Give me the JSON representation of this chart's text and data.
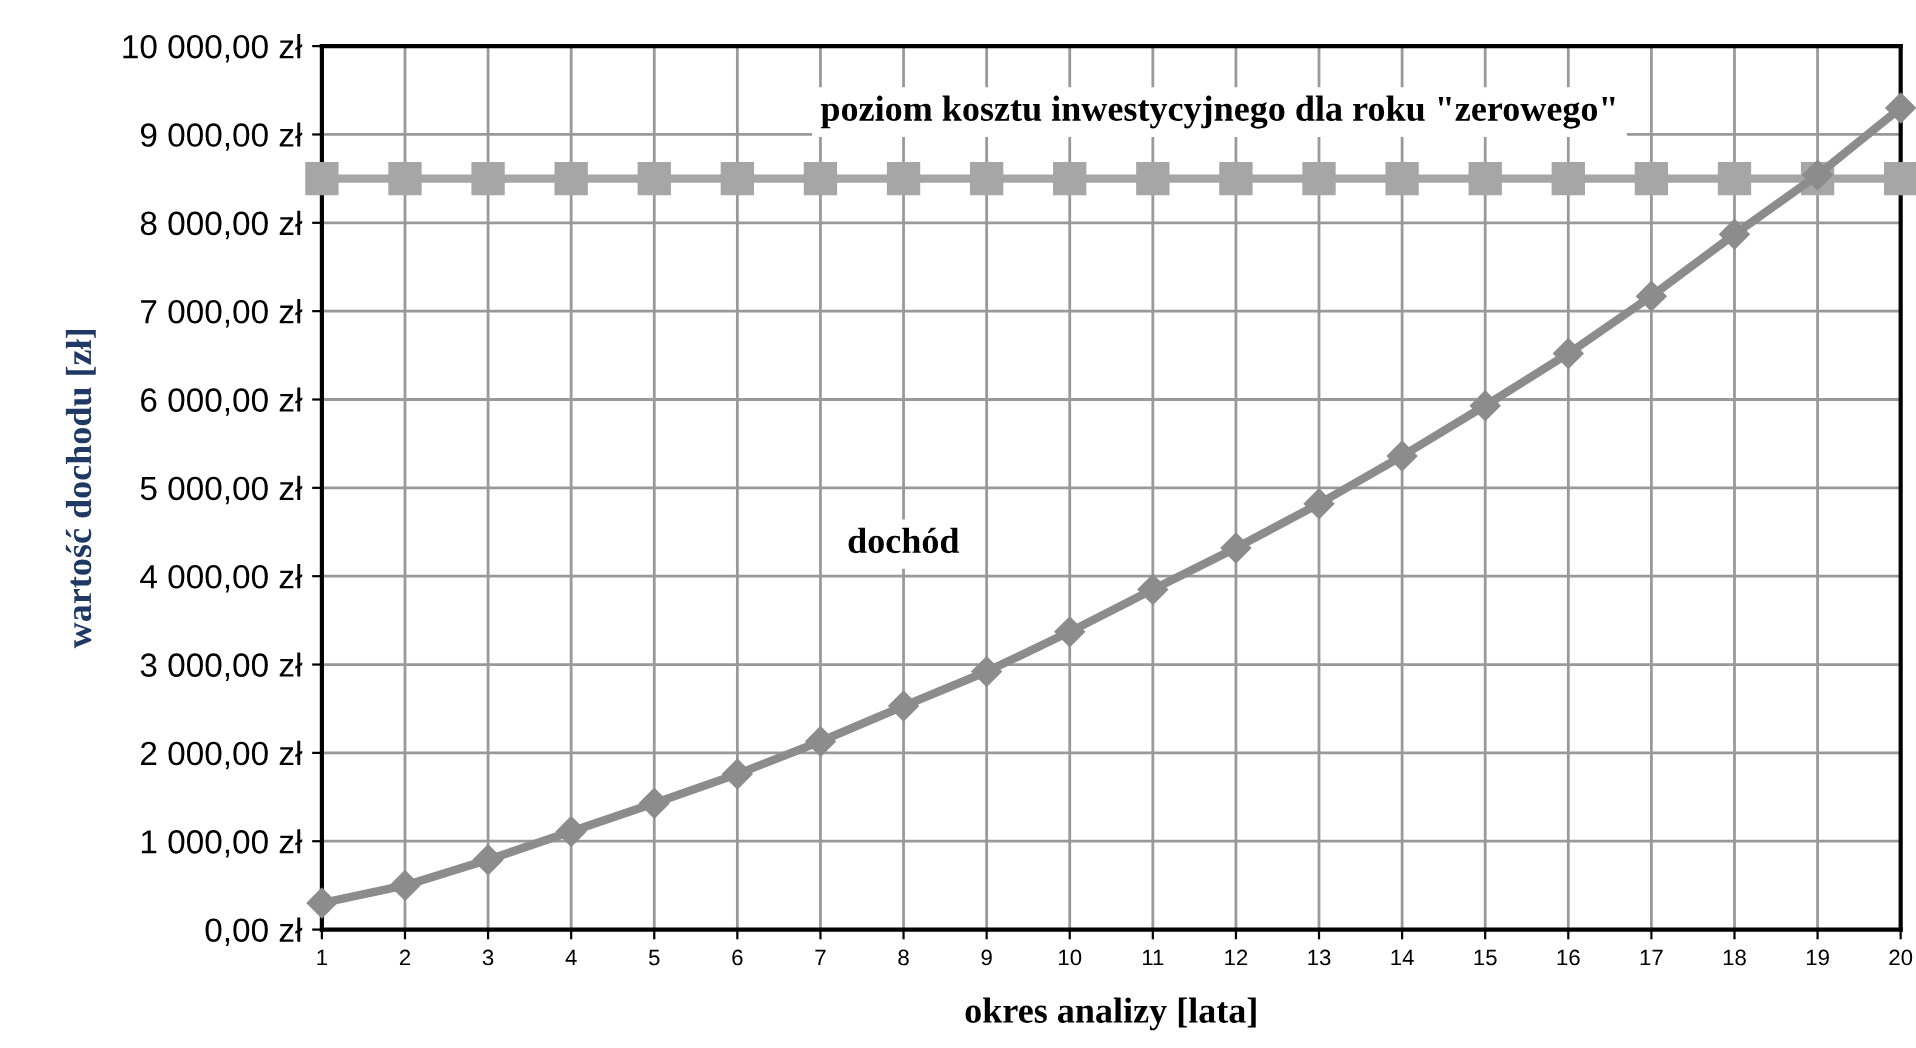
{
  "chart_data": {
    "type": "line",
    "xlabel": "okres analizy [lata]",
    "ylabel": "wartość dochodu [zł]",
    "x": [
      1,
      2,
      3,
      4,
      5,
      6,
      7,
      8,
      9,
      10,
      11,
      12,
      13,
      14,
      15,
      16,
      17,
      18,
      19,
      20
    ],
    "series": [
      {
        "name": "poziom kosztu inwestycyjnego dla roku \"zerowego\"",
        "color": "#a6a6a6",
        "marker": "square",
        "values": [
          8500,
          8500,
          8500,
          8500,
          8500,
          8500,
          8500,
          8500,
          8500,
          8500,
          8500,
          8500,
          8500,
          8500,
          8500,
          8500,
          8500,
          8500,
          8500,
          8500
        ]
      },
      {
        "name": "dochód",
        "color": "#8c8c8c",
        "marker": "diamond",
        "values": [
          300,
          500,
          790,
          1110,
          1430,
          1760,
          2130,
          2530,
          2920,
          3370,
          3850,
          4320,
          4820,
          5360,
          5930,
          6520,
          7170,
          7870,
          8540,
          9300
        ]
      }
    ],
    "xlim": [
      1,
      20
    ],
    "xticks": [
      1,
      2,
      3,
      4,
      5,
      6,
      7,
      8,
      9,
      10,
      11,
      12,
      13,
      14,
      15,
      16,
      17,
      18,
      19,
      20
    ],
    "ylim": [
      0,
      10000
    ],
    "yticks": [
      {
        "value": 0,
        "label": "0,00 zł"
      },
      {
        "value": 1000,
        "label": "1 000,00 zł"
      },
      {
        "value": 2000,
        "label": "2 000,00 zł"
      },
      {
        "value": 3000,
        "label": "3 000,00 zł"
      },
      {
        "value": 4000,
        "label": "4 000,00 zł"
      },
      {
        "value": 5000,
        "label": "5 000,00 zł"
      },
      {
        "value": 6000,
        "label": "6 000,00 zł"
      },
      {
        "value": 7000,
        "label": "7 000,00 zł"
      },
      {
        "value": 8000,
        "label": "8 000,00 zł"
      },
      {
        "value": 9000,
        "label": "9 000,00 zł"
      },
      {
        "value": 10000,
        "label": "10 000,00 zł"
      }
    ],
    "grid": true,
    "line_style": "solid",
    "legend": false
  }
}
